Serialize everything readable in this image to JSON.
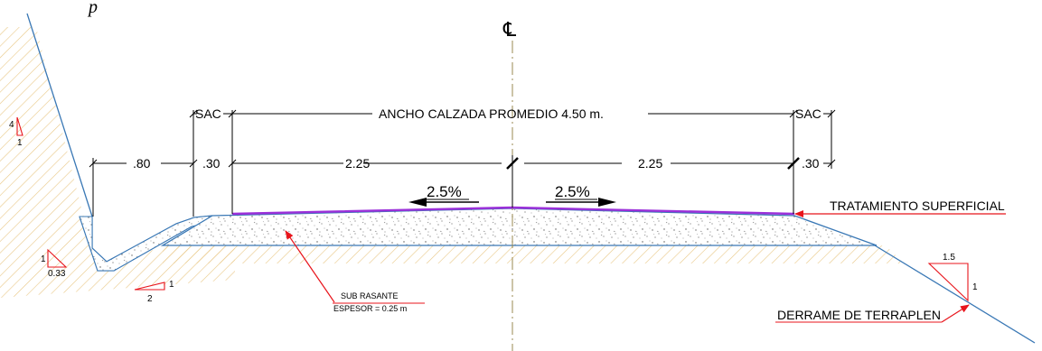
{
  "page": {
    "title_fragment": "p"
  },
  "centerline": {
    "symbol": "℄"
  },
  "dimensions": {
    "sac_left": "SAC",
    "sac_right": "SAC",
    "total_width": "ANCHO  CALZADA PROMEDIO 4.50 m.",
    "ditch_width": ".80",
    "shoulder_left": ".30",
    "lane_left": "2.25",
    "lane_right": "2.25",
    "shoulder_right": ".30"
  },
  "crossfall": {
    "left": "2.5%",
    "right": "2.5%"
  },
  "labels": {
    "surface_treatment": "TRATAMIENTO SUPERFICIAL",
    "subgrade_title": "SUB RASANTE",
    "subgrade_thickness": "ESPESOR = 0.25 m",
    "embankment": "DERRAME DE TERRAPLEN"
  },
  "slopes": {
    "cut_slope": {
      "rise": "4",
      "run": "1"
    },
    "ditch_inner": {
      "rise": "1",
      "run": "0.33"
    },
    "ditch_bottom": {
      "rise": "1",
      "run": "2"
    },
    "fill_slope": {
      "horizontal": "1.5",
      "vertical": "1"
    }
  },
  "colors": {
    "surface_line": "#9b30d9",
    "annotation_red": "#e8141b",
    "subgrade_line": "#3a78b5",
    "hatch": "#e9c887",
    "dashdot": "#9a8a50"
  }
}
